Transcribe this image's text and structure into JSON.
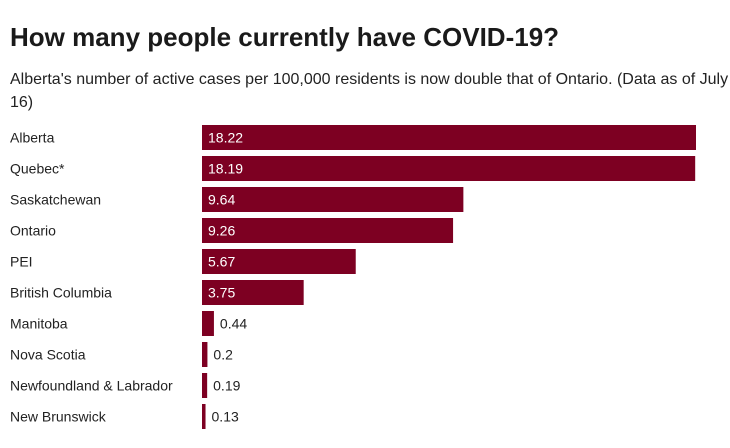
{
  "colors": {
    "bar": "#7d0022",
    "label_inside": "#ffffff",
    "label_outside": "#222222"
  },
  "chart_data": {
    "type": "bar",
    "orientation": "horizontal",
    "title": "How many people currently have COVID-19?",
    "subtitle": "Alberta's number of active cases per 100,000 residents is now double that of Ontario. (Data as of July 16)",
    "categories": [
      "Alberta",
      "Quebec*",
      "Saskatchewan",
      "Ontario",
      "PEI",
      "British Columbia",
      "Manitoba",
      "Nova Scotia",
      "Newfoundland & Labrador",
      "New Brunswick"
    ],
    "values": [
      18.22,
      18.19,
      9.64,
      9.26,
      5.67,
      3.75,
      0.44,
      0.2,
      0.19,
      0.13
    ],
    "value_labels": [
      "18.22",
      "18.19",
      "9.64",
      "9.26",
      "5.67",
      "3.75",
      "0.44",
      "0.2",
      "0.19",
      "0.13"
    ],
    "xlim": [
      0,
      18.22
    ]
  }
}
